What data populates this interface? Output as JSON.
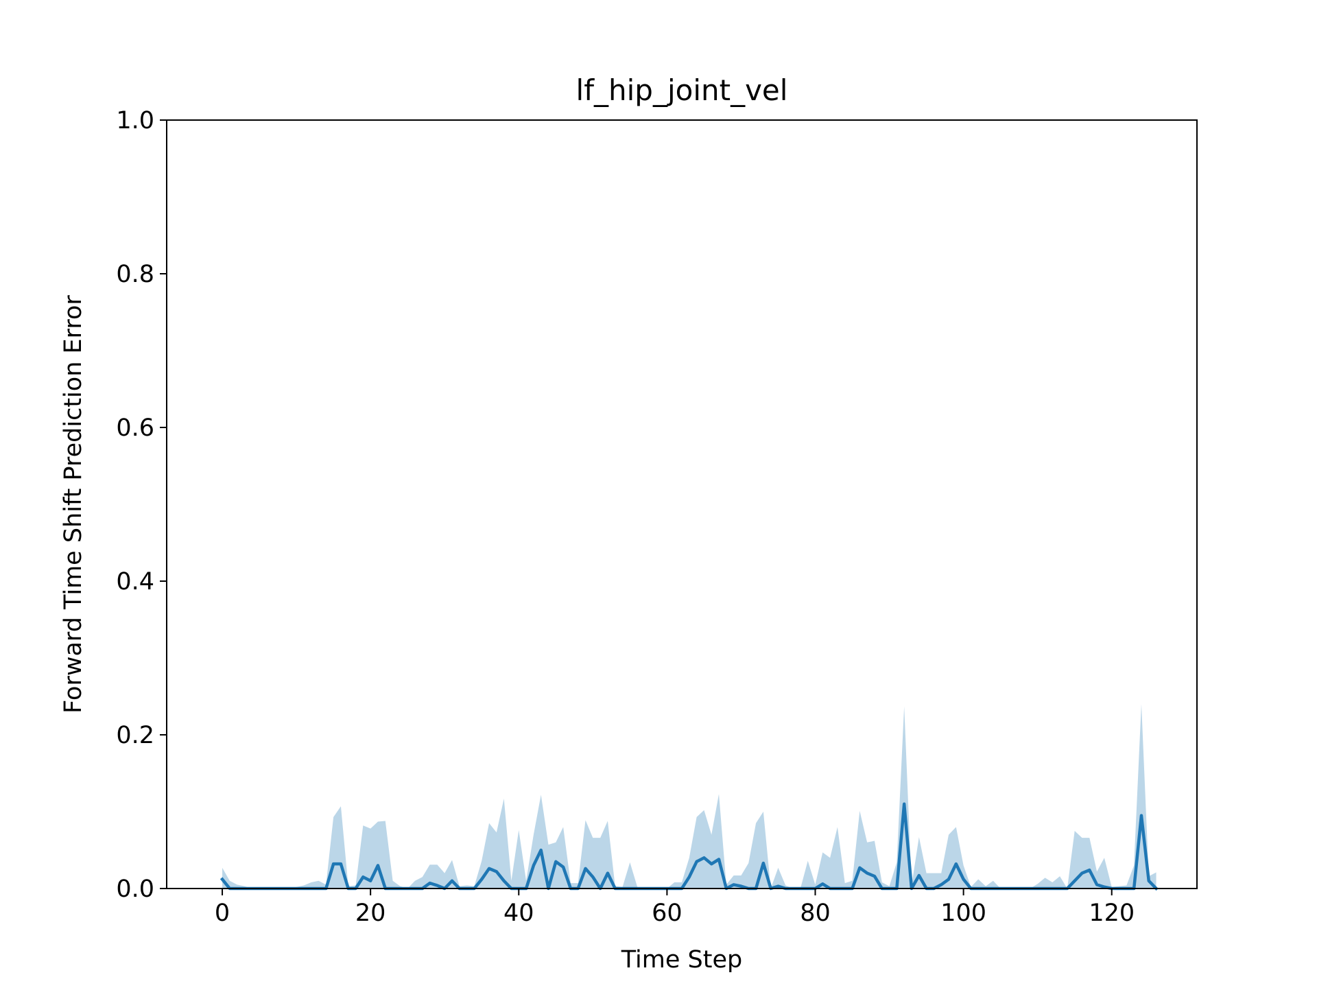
{
  "chart_data": {
    "type": "line",
    "title": "lf_hip_joint_vel",
    "xlabel": "Time Step",
    "ylabel": "Forward Time Shift Prediction Error",
    "xlim": [
      -7.5,
      131.5
    ],
    "ylim": [
      0.0,
      1.0
    ],
    "xticks": [
      0,
      20,
      40,
      60,
      80,
      100,
      120
    ],
    "yticks": [
      0.0,
      0.2,
      0.4,
      0.6,
      0.8,
      1.0
    ],
    "xtick_labels": [
      "0",
      "20",
      "40",
      "60",
      "80",
      "100",
      "120"
    ],
    "ytick_labels": [
      "0.0",
      "0.2",
      "0.4",
      "0.6",
      "0.8",
      "1.0"
    ],
    "grid": false,
    "legend": "none",
    "colors": {
      "line": "#1f77b4",
      "band": "#1f77b4"
    },
    "series": [
      {
        "x": [
          0,
          1,
          2,
          3,
          4,
          5,
          6,
          7,
          8,
          9,
          10,
          11,
          12,
          13,
          14,
          15,
          16,
          17,
          18,
          19,
          20,
          21,
          22,
          23,
          24,
          25,
          26,
          27,
          28,
          29,
          30,
          31,
          32,
          33,
          34,
          35,
          36,
          37,
          38,
          39,
          40,
          41,
          42,
          43,
          44,
          45,
          46,
          47,
          48,
          49,
          50,
          51,
          52,
          53,
          54,
          55,
          56,
          57,
          58,
          59,
          60,
          61,
          62,
          63,
          64,
          65,
          66,
          67,
          68,
          69,
          70,
          71,
          72,
          73,
          74,
          75,
          76,
          77,
          78,
          79,
          80,
          81,
          82,
          83,
          84,
          85,
          86,
          87,
          88,
          89,
          90,
          91,
          92,
          93,
          94,
          95,
          96,
          97,
          98,
          99,
          100,
          101,
          102,
          103,
          104,
          105,
          106,
          107,
          108,
          109,
          110,
          111,
          112,
          113,
          114,
          115,
          116,
          117,
          118,
          119,
          120,
          121,
          122,
          123,
          124,
          125,
          126
        ],
        "mean": [
          0.012,
          0,
          0,
          0,
          0,
          0,
          0,
          0,
          0,
          0,
          0,
          0,
          0,
          0,
          0,
          0.032,
          0.032,
          0,
          0,
          0.015,
          0.01,
          0.03,
          0,
          0,
          0,
          0,
          0,
          0,
          0.007,
          0.004,
          0,
          0.01,
          0,
          0,
          0,
          0.012,
          0.026,
          0.022,
          0.01,
          0,
          0,
          0,
          0.03,
          0.05,
          0,
          0.035,
          0.028,
          0,
          0,
          0.026,
          0.015,
          0,
          0.02,
          0,
          0,
          0,
          0,
          0,
          0,
          0,
          0,
          0,
          0,
          0.015,
          0.035,
          0.04,
          0.032,
          0.038,
          0,
          0.005,
          0.003,
          0,
          0,
          0.033,
          0,
          0.003,
          0,
          0,
          0,
          0,
          0,
          0.006,
          0,
          0,
          0,
          0,
          0.027,
          0.02,
          0.016,
          0,
          0,
          0,
          0.11,
          0,
          0.017,
          0,
          0,
          0.005,
          0.012,
          0.032,
          0.012,
          0,
          0,
          0,
          0,
          0,
          0,
          0,
          0,
          0,
          0,
          0,
          0,
          0,
          0,
          0.01,
          0.02,
          0.024,
          0.005,
          0.002,
          0,
          0,
          0,
          0,
          0.095,
          0.01,
          0
        ],
        "upper": [
          0.027,
          0.01,
          0.005,
          0.003,
          0,
          0,
          0,
          0,
          0,
          0,
          0.002,
          0.004,
          0.008,
          0.01,
          0.005,
          0.093,
          0.107,
          0.003,
          0.004,
          0.082,
          0.078,
          0.087,
          0.088,
          0.01,
          0.003,
          0,
          0.01,
          0.015,
          0.031,
          0.031,
          0.02,
          0.037,
          0.003,
          0.004,
          0.003,
          0.036,
          0.085,
          0.073,
          0.117,
          0.01,
          0.076,
          0.01,
          0.07,
          0.122,
          0.057,
          0.06,
          0.08,
          0.007,
          0.007,
          0.089,
          0.066,
          0.066,
          0.088,
          0.003,
          0.002,
          0.034,
          0.002,
          0,
          0,
          0,
          0,
          0.008,
          0.008,
          0.04,
          0.093,
          0.102,
          0.07,
          0.123,
          0.005,
          0.017,
          0.017,
          0.033,
          0.085,
          0.1,
          0,
          0.027,
          0.004,
          0,
          0,
          0.036,
          0.005,
          0.047,
          0.04,
          0.08,
          0.007,
          0.01,
          0.101,
          0.06,
          0.062,
          0.008,
          0.003,
          0.034,
          0.237,
          0.004,
          0.067,
          0.02,
          0.02,
          0.02,
          0.07,
          0.08,
          0.03,
          0.002,
          0.012,
          0.003,
          0.01,
          0,
          0,
          0,
          0,
          0,
          0.006,
          0.014,
          0.008,
          0.016,
          0,
          0.075,
          0.066,
          0.066,
          0.022,
          0.04,
          0.002,
          0.003,
          0.004,
          0.03,
          0.24,
          0.016,
          0.021
        ],
        "lower": [
          0,
          0,
          0,
          0,
          0,
          0,
          0,
          0,
          0,
          0,
          0,
          0,
          0,
          0,
          0,
          0,
          0,
          0,
          0,
          0,
          0,
          0,
          0,
          0,
          0,
          0,
          0,
          0,
          0,
          0,
          0,
          0,
          0,
          0,
          0,
          0,
          0,
          0,
          0,
          0,
          0,
          0,
          0,
          0,
          0,
          0,
          0,
          0,
          0,
          0,
          0,
          0,
          0,
          0,
          0,
          0,
          0,
          0,
          0,
          0,
          0,
          0,
          0,
          0,
          0,
          0,
          0,
          0,
          0,
          0,
          0,
          0,
          0,
          0,
          0,
          0,
          0,
          0,
          0,
          0,
          0,
          0,
          0,
          0,
          0,
          0,
          0,
          0,
          0,
          0,
          0,
          0,
          0,
          0,
          0,
          0,
          0,
          0,
          0,
          0,
          0,
          0,
          0,
          0,
          0,
          0,
          0,
          0,
          0,
          0,
          0,
          0,
          0,
          0,
          0,
          0,
          0,
          0,
          0,
          0,
          0,
          0,
          0,
          0,
          0,
          0,
          0
        ]
      }
    ]
  }
}
